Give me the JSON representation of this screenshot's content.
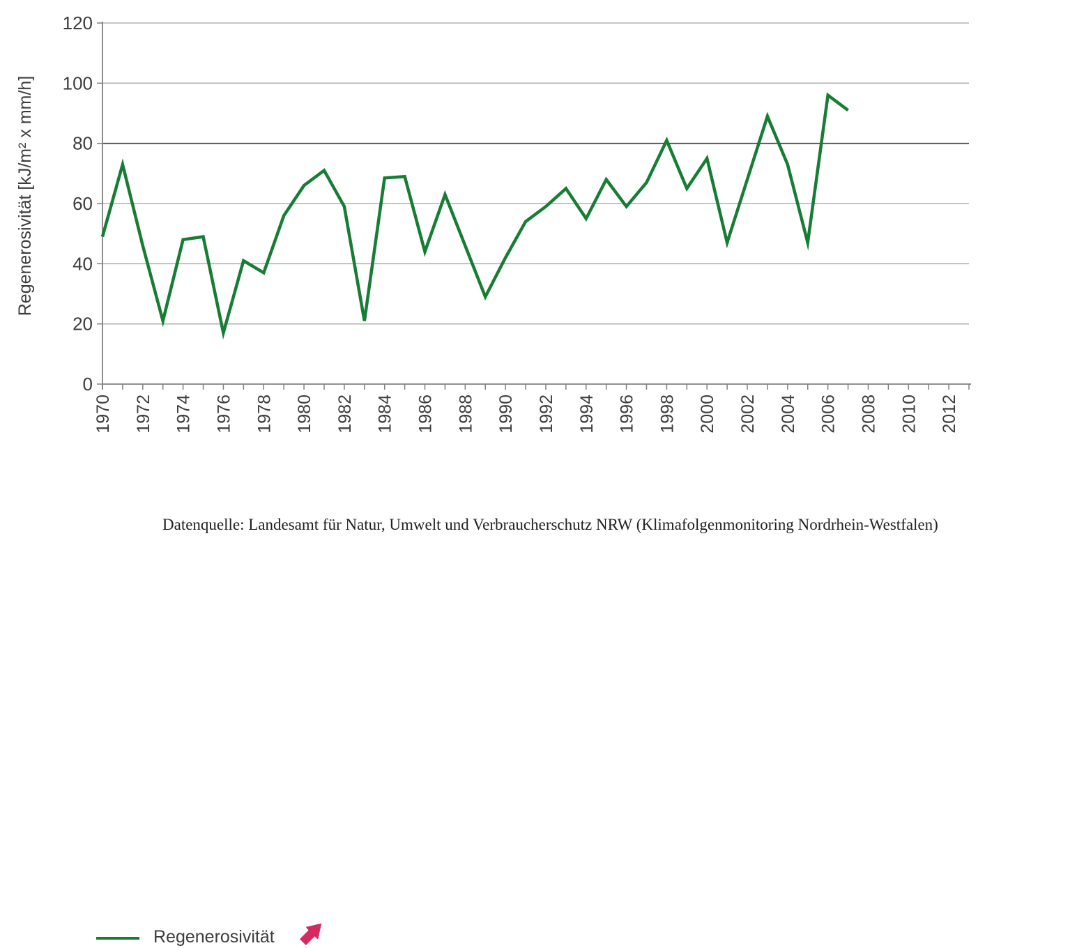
{
  "chart_data": {
    "type": "line",
    "title": "",
    "xlabel": "",
    "ylabel": "Regenerosivität [kJ/m² x mm/h]",
    "ylim": [
      0,
      120
    ],
    "yticks": [
      0,
      20,
      40,
      60,
      80,
      100,
      120
    ],
    "x_axis": {
      "start_year": 1970,
      "end_year": 2013,
      "tick_every": 1,
      "label_every": 2
    },
    "x_tick_labels": [
      "1970",
      "1972",
      "1974",
      "1976",
      "1978",
      "1980",
      "1982",
      "1984",
      "1986",
      "1988",
      "1990",
      "1992",
      "1994",
      "1996",
      "1998",
      "2000",
      "2002",
      "2004",
      "2006",
      "2008",
      "2010",
      "2012"
    ],
    "grid": "horizontal",
    "emphasized_gridline_value": 80,
    "legend_position": "bottom-left",
    "series": [
      {
        "name": "Regenerosivität",
        "color": "#177d34",
        "x": [
          1970,
          1971,
          1972,
          1973,
          1974,
          1975,
          1976,
          1977,
          1978,
          1979,
          1980,
          1981,
          1982,
          1983,
          1984,
          1985,
          1986,
          1987,
          1988,
          1989,
          1990,
          1991,
          1992,
          1993,
          1994,
          1995,
          1996,
          1997,
          1998,
          1999,
          2000,
          2001,
          2002,
          2003,
          2004,
          2005,
          2006,
          2007
        ],
        "values": [
          49,
          73,
          46,
          21,
          48,
          49,
          17,
          41,
          37,
          56,
          66,
          71,
          59,
          21,
          68.5,
          69,
          44,
          63,
          46,
          29,
          42,
          54,
          59,
          65,
          55,
          68,
          59,
          67,
          81,
          65,
          75,
          47,
          68,
          89,
          73,
          47,
          96,
          91
        ]
      }
    ]
  },
  "legend": {
    "label": "Regenerosivität",
    "icon": "trend-up-arrow"
  },
  "source": {
    "text": "Datenquelle: Landesamt für Natur, Umwelt und Verbraucherschutz NRW (Klimafolgenmonitoring Nordrhein-Westfalen)"
  },
  "colors": {
    "line": "#177d34",
    "arrow": "#d42a5f",
    "grid": "#b2b2b2",
    "grid_dark": "#3f3f3f",
    "axis": "#808080",
    "text": "#3d3d3d"
  }
}
